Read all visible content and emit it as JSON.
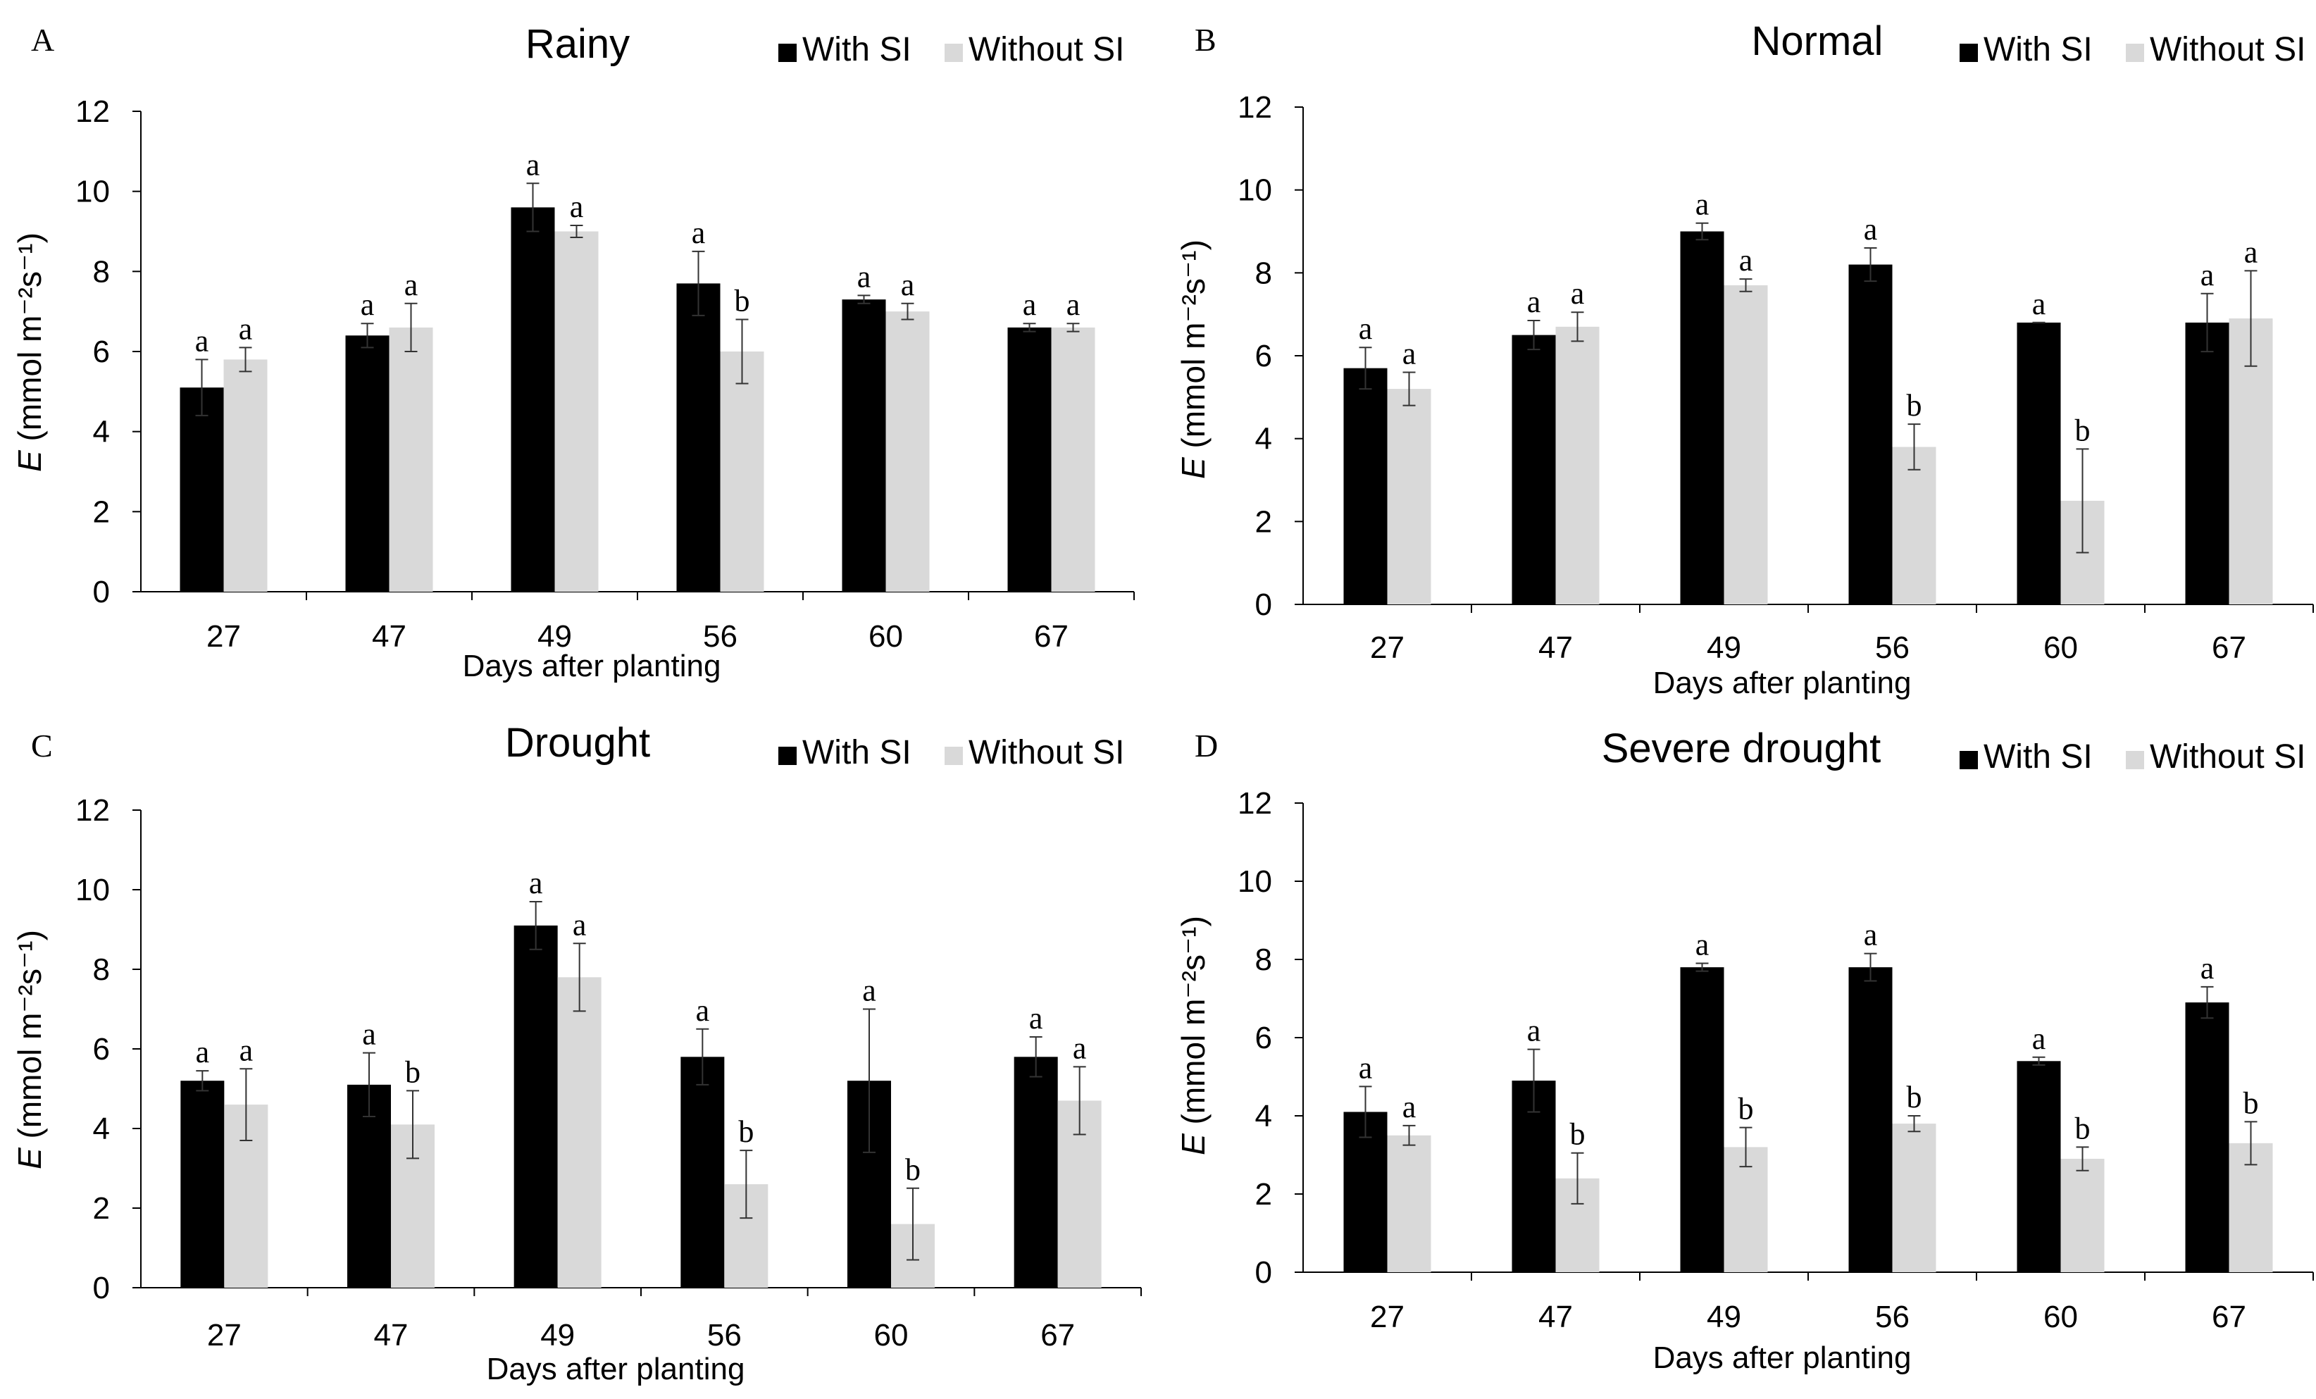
{
  "chart_data": [
    {
      "type": "bar",
      "panel": "A",
      "title": "Rainy",
      "xlabel": "Days after planting",
      "ylabel": "E (mmol m⁻²s⁻¹)",
      "ylim": [
        0,
        12
      ],
      "yticks": [
        0,
        2,
        4,
        6,
        8,
        10,
        12
      ],
      "categories": [
        "27",
        "47",
        "49",
        "56",
        "60",
        "67"
      ],
      "series": [
        {
          "name": "With SI",
          "color": "#000000",
          "values": [
            5.1,
            6.4,
            9.6,
            7.7,
            7.3,
            6.6
          ],
          "errors": [
            0.7,
            0.3,
            0.6,
            0.8,
            0.1,
            0.1
          ],
          "letters": [
            "a",
            "a",
            "a",
            "a",
            "a",
            "a"
          ]
        },
        {
          "name": "Without SI",
          "color": "#d9d9d9",
          "values": [
            5.8,
            6.6,
            9.0,
            6.0,
            7.0,
            6.6
          ],
          "errors": [
            0.3,
            0.6,
            0.15,
            0.8,
            0.2,
            0.1
          ],
          "letters": [
            "a",
            "a",
            "a",
            "b",
            "a",
            "a"
          ]
        }
      ]
    },
    {
      "type": "bar",
      "panel": "B",
      "title": "Normal",
      "xlabel": "Days after planting",
      "ylabel": "E (mmol m⁻²s⁻¹)",
      "ylim": [
        0,
        12
      ],
      "yticks": [
        0,
        2,
        4,
        6,
        8,
        10,
        12
      ],
      "categories": [
        "27",
        "47",
        "49",
        "56",
        "60",
        "67"
      ],
      "series": [
        {
          "name": "With SI",
          "color": "#000000",
          "values": [
            5.7,
            6.5,
            9.0,
            8.2,
            6.8,
            6.8
          ],
          "errors": [
            0.5,
            0.35,
            0.2,
            0.4,
            0.0,
            0.7
          ],
          "letters": [
            "a",
            "a",
            "a",
            "a",
            "a",
            "a"
          ]
        },
        {
          "name": "Without SI",
          "color": "#d9d9d9",
          "values": [
            5.2,
            6.7,
            7.7,
            3.8,
            2.5,
            6.9
          ],
          "errors": [
            0.4,
            0.35,
            0.15,
            0.55,
            1.25,
            1.15
          ],
          "letters": [
            "a",
            "a",
            "a",
            "b",
            "b",
            "a"
          ]
        }
      ]
    },
    {
      "type": "bar",
      "panel": "C",
      "title": "Drought",
      "xlabel": "Days after planting",
      "ylabel": "E (mmol m⁻²s⁻¹)",
      "ylim": [
        0,
        12
      ],
      "yticks": [
        0,
        2,
        4,
        6,
        8,
        10,
        12
      ],
      "categories": [
        "27",
        "47",
        "49",
        "56",
        "60",
        "67"
      ],
      "series": [
        {
          "name": "With SI",
          "color": "#000000",
          "values": [
            5.2,
            5.1,
            9.1,
            5.8,
            5.2,
            5.8
          ],
          "errors": [
            0.25,
            0.8,
            0.6,
            0.7,
            1.8,
            0.5
          ],
          "letters": [
            "a",
            "a",
            "a",
            "a",
            "a",
            "a"
          ]
        },
        {
          "name": "Without SI",
          "color": "#d9d9d9",
          "values": [
            4.6,
            4.1,
            7.8,
            2.6,
            1.6,
            4.7
          ],
          "errors": [
            0.9,
            0.85,
            0.85,
            0.85,
            0.9,
            0.85
          ],
          "letters": [
            "a",
            "b",
            "a",
            "b",
            "b",
            "a"
          ]
        }
      ]
    },
    {
      "type": "bar",
      "panel": "D",
      "title": "Severe drought",
      "xlabel": "Days after planting",
      "ylabel": "E (mmol m⁻²s⁻¹)",
      "ylim": [
        0,
        12
      ],
      "yticks": [
        0,
        2,
        4,
        6,
        8,
        10,
        12
      ],
      "categories": [
        "27",
        "47",
        "49",
        "56",
        "60",
        "67"
      ],
      "series": [
        {
          "name": "With SI",
          "color": "#000000",
          "values": [
            4.1,
            4.9,
            7.8,
            7.8,
            5.4,
            6.9
          ],
          "errors": [
            0.65,
            0.8,
            0.1,
            0.35,
            0.1,
            0.4
          ],
          "letters": [
            "a",
            "a",
            "a",
            "a",
            "a",
            "a"
          ]
        },
        {
          "name": "Without SI",
          "color": "#d9d9d9",
          "values": [
            3.5,
            2.4,
            3.2,
            3.8,
            2.9,
            3.3
          ],
          "errors": [
            0.25,
            0.65,
            0.5,
            0.2,
            0.3,
            0.55
          ],
          "letters": [
            "a",
            "b",
            "b",
            "b",
            "b",
            "b"
          ]
        }
      ]
    }
  ]
}
